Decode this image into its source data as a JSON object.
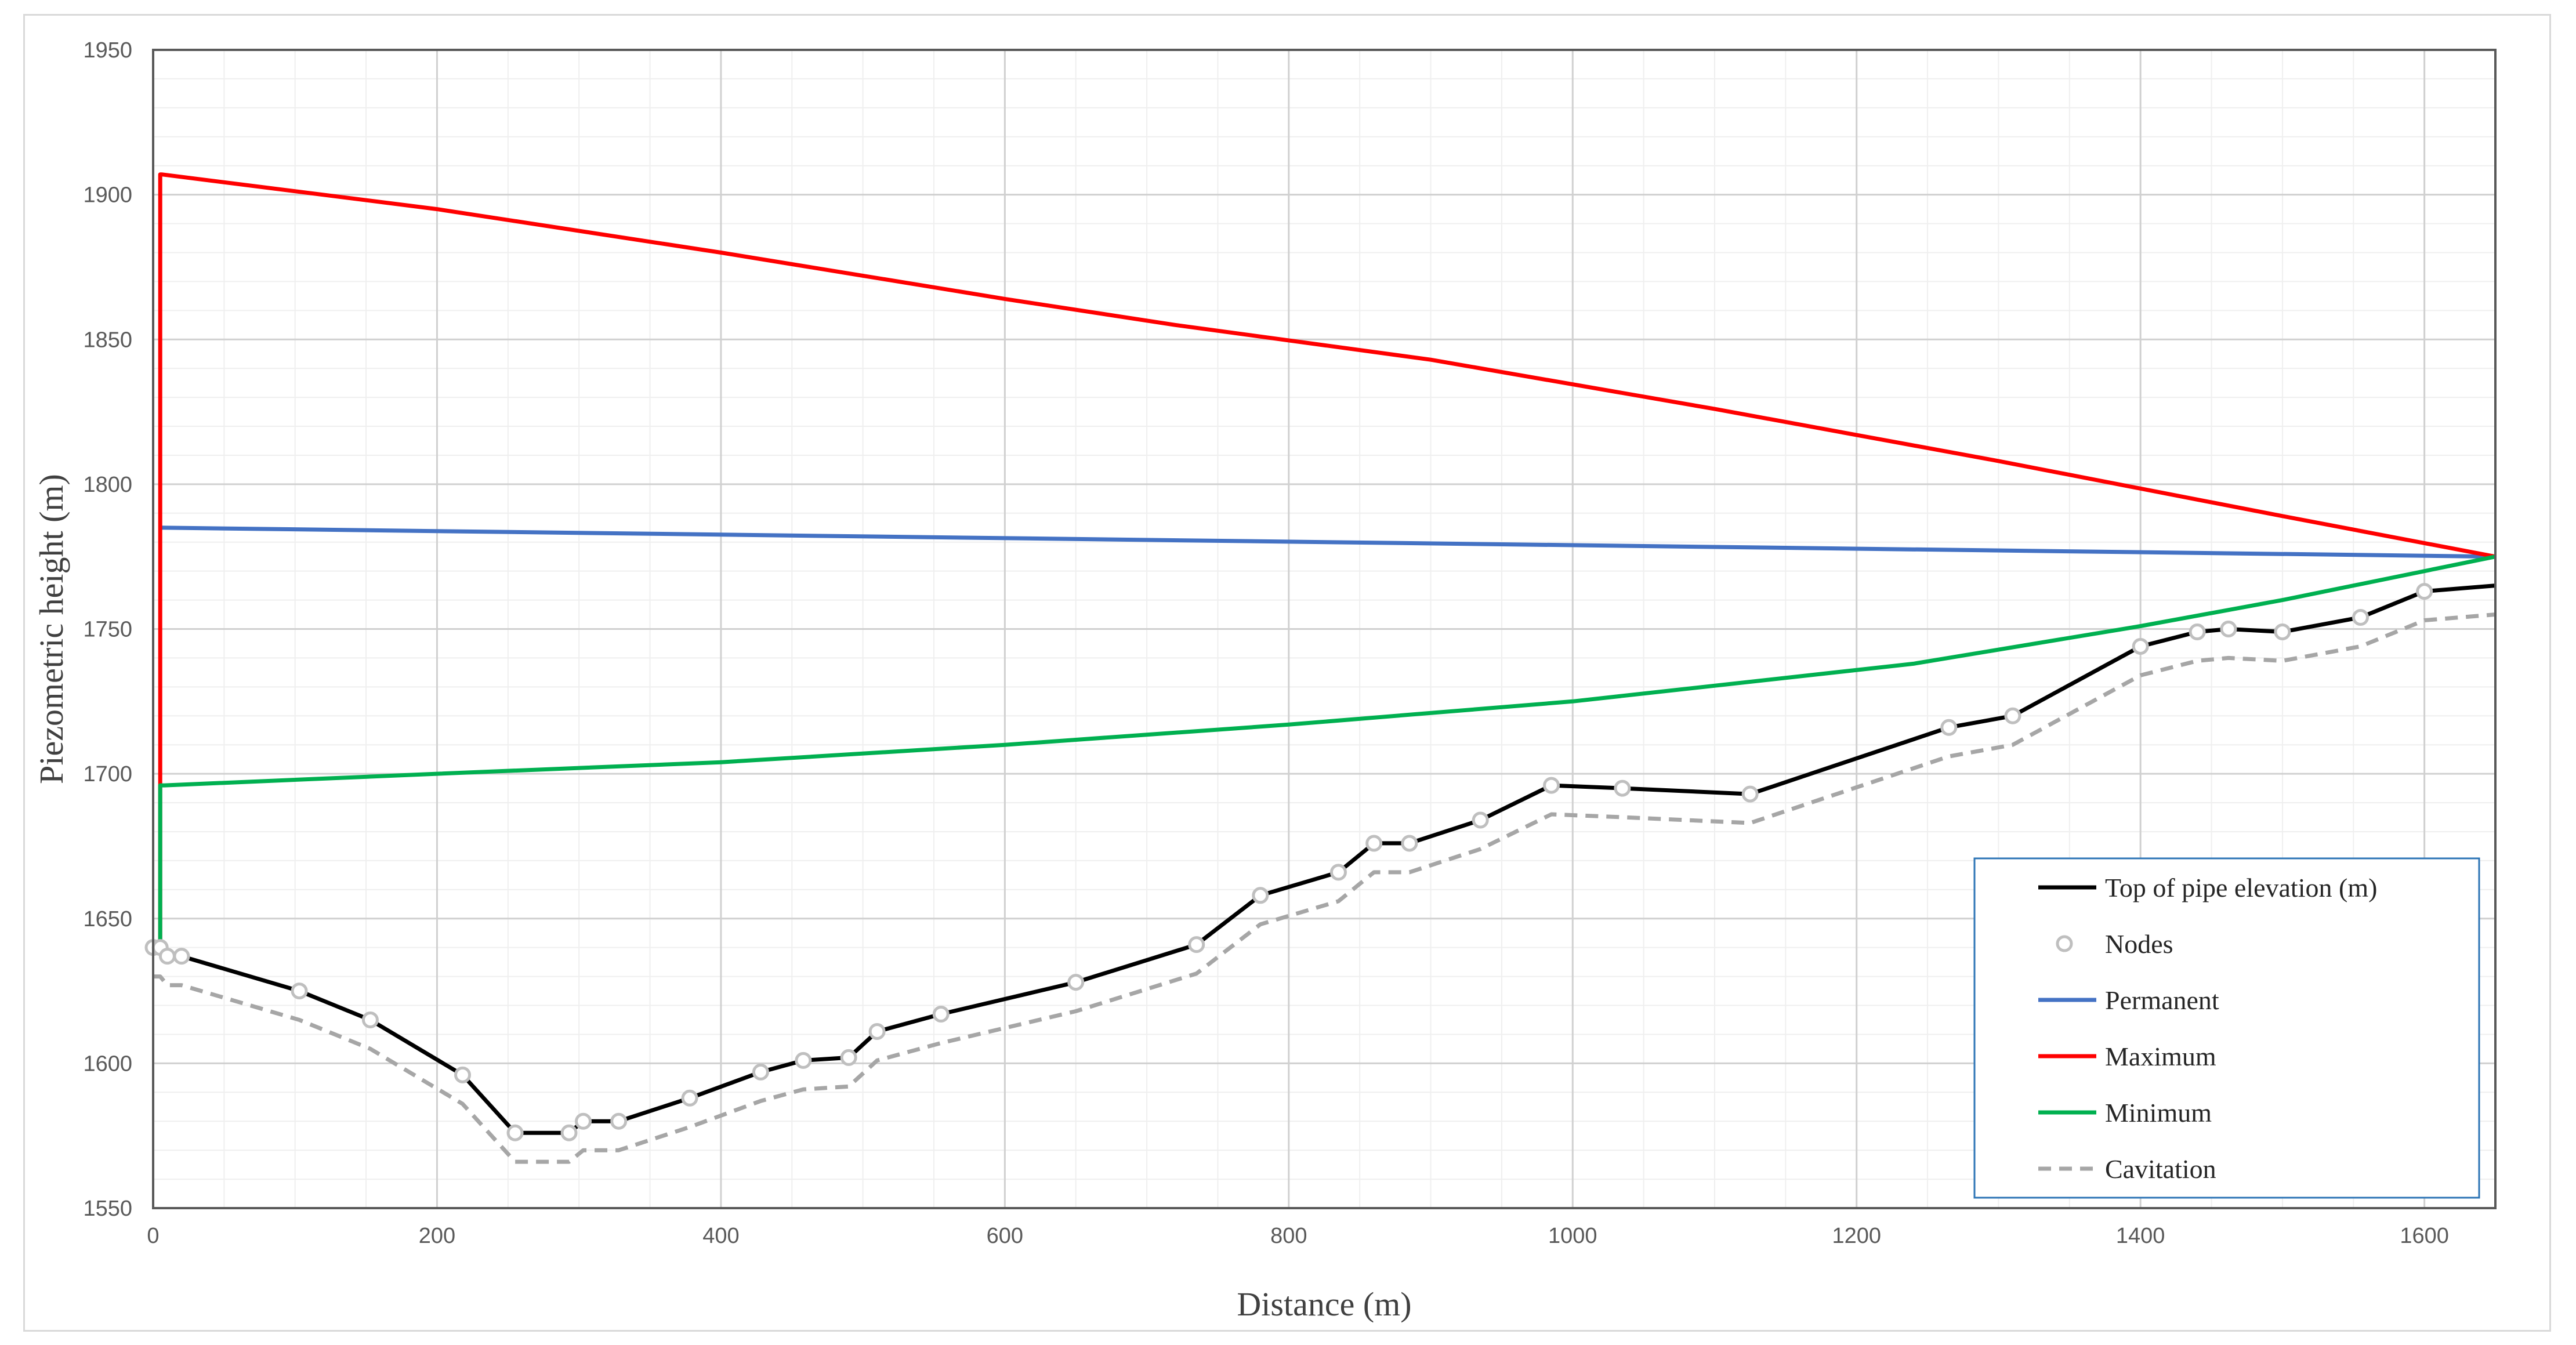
{
  "chart_data": {
    "type": "line",
    "title": "",
    "xlabel": "Distance (m)",
    "ylabel": "Piezometric height (m)",
    "xlim": [
      0,
      1650
    ],
    "ylim": [
      1550,
      1950
    ],
    "x_ticks": [
      0,
      200,
      400,
      600,
      800,
      1000,
      1200,
      1400,
      1600
    ],
    "y_ticks": [
      1550,
      1600,
      1650,
      1700,
      1750,
      1800,
      1850,
      1900,
      1950
    ],
    "grid": true,
    "legend_position": "bottom-right",
    "series": [
      {
        "name": "Top of pipe elevation (m)",
        "color": "#000000",
        "style": "solid",
        "x": [
          0,
          5,
          10,
          20,
          103,
          153,
          218,
          255,
          293,
          303,
          328,
          378,
          428,
          458,
          490,
          510,
          555,
          650,
          735,
          780,
          835,
          860,
          885,
          935,
          985,
          1035,
          1125,
          1265,
          1310,
          1400,
          1440,
          1462,
          1500,
          1555,
          1600,
          1650
        ],
        "y": [
          1640,
          1640,
          1637,
          1637,
          1625,
          1615,
          1596,
          1576,
          1576,
          1580,
          1580,
          1588,
          1597,
          1601,
          1602,
          1611,
          1617,
          1628,
          1641,
          1658,
          1666,
          1676,
          1676,
          1684,
          1696,
          1695,
          1693,
          1716,
          1720,
          1744,
          1749,
          1750,
          1749,
          1754,
          1763,
          1765
        ]
      },
      {
        "name": "Nodes",
        "color": "#bfbfbf",
        "style": "markers",
        "x": [
          0,
          5,
          10,
          20,
          103,
          153,
          218,
          255,
          293,
          303,
          328,
          378,
          428,
          458,
          490,
          510,
          555,
          650,
          735,
          780,
          835,
          860,
          885,
          935,
          985,
          1035,
          1125,
          1265,
          1310,
          1400,
          1440,
          1462,
          1500,
          1555,
          1600
        ],
        "y": [
          1640,
          1640,
          1637,
          1637,
          1625,
          1615,
          1596,
          1576,
          1576,
          1580,
          1580,
          1588,
          1597,
          1601,
          1602,
          1611,
          1617,
          1628,
          1641,
          1658,
          1666,
          1676,
          1676,
          1684,
          1696,
          1695,
          1693,
          1716,
          1720,
          1744,
          1749,
          1750,
          1749,
          1754,
          1763
        ]
      },
      {
        "name": "Permanent",
        "color": "#4472c4",
        "style": "solid",
        "x": [
          5,
          1650
        ],
        "y": [
          1785,
          1775
        ]
      },
      {
        "name": "Maximum",
        "color": "#ff0000",
        "style": "solid",
        "x": [
          5,
          5,
          6,
          200,
          400,
          500,
          600,
          720,
          900,
          1100,
          1300,
          1500,
          1650
        ],
        "y": [
          1640,
          1907,
          1907,
          1895,
          1880,
          1872,
          1864,
          1855,
          1843,
          1826,
          1808,
          1789,
          1775
        ]
      },
      {
        "name": "Minimum",
        "color": "#00b050",
        "style": "solid",
        "x": [
          5,
          5,
          8,
          200,
          400,
          600,
          800,
          1000,
          1240,
          1400,
          1500,
          1650
        ],
        "y": [
          1640,
          1696,
          1696,
          1700,
          1704,
          1710,
          1717,
          1725,
          1738,
          1751,
          1760,
          1775
        ]
      },
      {
        "name": "Cavitation",
        "color": "#a6a6a6",
        "style": "dashed",
        "x": [
          0,
          5,
          10,
          20,
          103,
          153,
          218,
          255,
          293,
          303,
          328,
          378,
          428,
          458,
          490,
          510,
          555,
          650,
          735,
          780,
          835,
          860,
          885,
          935,
          985,
          1035,
          1125,
          1265,
          1310,
          1400,
          1440,
          1462,
          1500,
          1555,
          1600,
          1650
        ],
        "y": [
          1630,
          1630,
          1627,
          1627,
          1615,
          1605,
          1586,
          1566,
          1566,
          1570,
          1570,
          1578,
          1587,
          1591,
          1592,
          1601,
          1607,
          1618,
          1631,
          1648,
          1656,
          1666,
          1666,
          1674,
          1686,
          1685,
          1683,
          1706,
          1710,
          1734,
          1739,
          1740,
          1739,
          1744,
          1753,
          1755
        ]
      }
    ]
  }
}
